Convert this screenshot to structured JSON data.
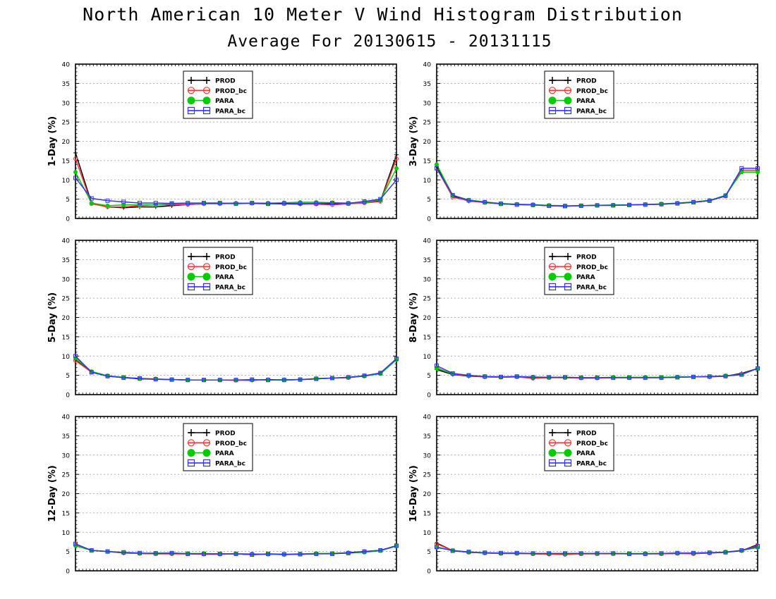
{
  "header": {
    "title": "North American 10 Meter V Wind Histogram Distribution",
    "subtitle": "Average For 20130615 - 20131115"
  },
  "legend": {
    "entries": [
      "PROD",
      "PROD_bc",
      "PARA",
      "PARA_bc"
    ]
  },
  "colors": {
    "PROD": "#000000",
    "PROD_bc": "#ff3333",
    "PARA": "#00cc00",
    "PARA_bc": "#3333ff"
  },
  "chart_data": [
    {
      "type": "line",
      "ylabel": "1-Day (%)",
      "ylim": [
        0,
        40
      ],
      "yticks": [
        "0",
        "5",
        "10",
        "15",
        "20",
        "25",
        "30",
        "35",
        "40"
      ],
      "grid": "horizontal dotted",
      "legend_position": "top-center",
      "x": [
        1,
        2,
        3,
        4,
        5,
        6,
        7,
        8,
        9,
        10,
        11,
        12,
        13,
        14,
        15,
        16,
        17,
        18,
        19,
        20,
        21
      ],
      "series": [
        {
          "name": "PROD",
          "values": [
            17.0,
            4.0,
            3.0,
            2.8,
            3.0,
            3.0,
            3.3,
            3.6,
            3.8,
            3.9,
            4.0,
            3.9,
            3.8,
            3.8,
            3.7,
            3.8,
            3.8,
            3.9,
            4.3,
            4.5,
            16.5
          ]
        },
        {
          "name": "PROD_bc",
          "values": [
            15.5,
            3.8,
            3.0,
            3.0,
            3.3,
            3.5,
            3.5,
            3.6,
            3.8,
            3.8,
            3.9,
            4.0,
            3.8,
            3.9,
            3.8,
            3.7,
            3.5,
            3.8,
            4.0,
            4.4,
            15.5
          ]
        },
        {
          "name": "PARA",
          "values": [
            12.0,
            4.0,
            3.3,
            3.5,
            3.5,
            3.5,
            3.8,
            3.8,
            4.0,
            4.0,
            3.9,
            4.0,
            4.0,
            4.1,
            4.2,
            4.2,
            4.1,
            4.0,
            4.2,
            4.8,
            13.0
          ]
        },
        {
          "name": "PARA_bc",
          "values": [
            10.5,
            5.2,
            4.6,
            4.3,
            4.0,
            4.0,
            3.9,
            4.0,
            4.0,
            4.0,
            3.8,
            4.0,
            3.8,
            3.9,
            3.9,
            3.9,
            4.0,
            3.9,
            4.4,
            5.0,
            10.0
          ]
        }
      ]
    },
    {
      "type": "line",
      "ylabel": "3-Day (%)",
      "ylim": [
        0,
        40
      ],
      "yticks": [
        "0",
        "5",
        "10",
        "15",
        "20",
        "25",
        "30",
        "35",
        "40"
      ],
      "grid": "horizontal dotted",
      "legend_position": "top-center",
      "x": [
        1,
        2,
        3,
        4,
        5,
        6,
        7,
        8,
        9,
        10,
        11,
        12,
        13,
        14,
        15,
        16,
        17,
        18,
        19,
        20,
        21
      ],
      "series": [
        {
          "name": "PROD",
          "values": [
            13.5,
            5.8,
            4.5,
            4.2,
            3.8,
            3.6,
            3.5,
            3.3,
            3.2,
            3.3,
            3.4,
            3.4,
            3.5,
            3.6,
            3.7,
            3.9,
            4.2,
            4.6,
            5.8,
            12.5,
            12.5
          ]
        },
        {
          "name": "PROD_bc",
          "values": [
            13.0,
            5.5,
            4.6,
            4.1,
            3.8,
            3.6,
            3.5,
            3.3,
            3.2,
            3.3,
            3.4,
            3.4,
            3.5,
            3.6,
            3.7,
            3.9,
            4.2,
            4.6,
            5.8,
            12.5,
            12.5
          ]
        },
        {
          "name": "PARA",
          "values": [
            14.0,
            6.0,
            4.8,
            4.3,
            3.9,
            3.7,
            3.6,
            3.4,
            3.3,
            3.3,
            3.4,
            3.5,
            3.5,
            3.6,
            3.8,
            4.0,
            4.3,
            4.7,
            6.0,
            12.0,
            12.0
          ]
        },
        {
          "name": "PARA_bc",
          "values": [
            13.0,
            6.0,
            4.7,
            4.2,
            3.8,
            3.6,
            3.5,
            3.3,
            3.2,
            3.3,
            3.4,
            3.4,
            3.5,
            3.6,
            3.7,
            3.9,
            4.2,
            4.6,
            5.9,
            13.0,
            13.0
          ]
        }
      ]
    },
    {
      "type": "line",
      "ylabel": "5-Day (%)",
      "ylim": [
        0,
        40
      ],
      "yticks": [
        "0",
        "5",
        "10",
        "15",
        "20",
        "25",
        "30",
        "35",
        "40"
      ],
      "grid": "horizontal dotted",
      "legend_position": "top-center",
      "x": [
        1,
        2,
        3,
        4,
        5,
        6,
        7,
        8,
        9,
        10,
        11,
        12,
        13,
        14,
        15,
        16,
        17,
        18,
        19,
        20,
        21
      ],
      "series": [
        {
          "name": "PROD",
          "values": [
            9.0,
            5.8,
            4.8,
            4.4,
            4.1,
            4.0,
            3.9,
            3.8,
            3.8,
            3.8,
            3.8,
            3.7,
            3.9,
            3.8,
            3.9,
            4.1,
            4.3,
            4.4,
            4.8,
            5.6,
            9.3
          ]
        },
        {
          "name": "PROD_bc",
          "values": [
            8.8,
            5.8,
            4.8,
            4.4,
            4.2,
            4.1,
            3.9,
            3.8,
            3.8,
            3.8,
            3.7,
            3.8,
            3.8,
            3.8,
            3.9,
            4.1,
            4.3,
            4.4,
            4.9,
            5.6,
            9.3
          ]
        },
        {
          "name": "PARA",
          "values": [
            9.5,
            6.0,
            4.9,
            4.5,
            4.2,
            4.0,
            3.9,
            3.8,
            3.8,
            3.8,
            3.8,
            3.8,
            3.8,
            3.9,
            3.9,
            4.2,
            4.3,
            4.5,
            4.8,
            5.4,
            9.0
          ]
        },
        {
          "name": "PARA_bc",
          "values": [
            10.0,
            5.8,
            4.8,
            4.4,
            4.2,
            4.0,
            3.9,
            3.8,
            3.8,
            3.8,
            3.8,
            3.9,
            3.8,
            3.8,
            3.9,
            4.1,
            4.3,
            4.5,
            4.9,
            5.6,
            9.3
          ]
        }
      ]
    },
    {
      "type": "line",
      "ylabel": "8-Day (%)",
      "ylim": [
        0,
        40
      ],
      "yticks": [
        "0",
        "5",
        "10",
        "15",
        "20",
        "25",
        "30",
        "35",
        "40"
      ],
      "grid": "horizontal dotted",
      "legend_position": "top-center",
      "x": [
        1,
        2,
        3,
        4,
        5,
        6,
        7,
        8,
        9,
        10,
        11,
        12,
        13,
        14,
        15,
        16,
        17,
        18,
        19,
        20,
        21
      ],
      "series": [
        {
          "name": "PROD",
          "values": [
            6.5,
            5.2,
            4.8,
            4.6,
            4.5,
            4.6,
            4.3,
            4.4,
            4.4,
            4.3,
            4.3,
            4.4,
            4.4,
            4.4,
            4.4,
            4.5,
            4.6,
            4.6,
            4.8,
            5.5,
            6.8
          ]
        },
        {
          "name": "PROD_bc",
          "values": [
            7.0,
            5.3,
            4.9,
            4.6,
            4.5,
            4.6,
            4.2,
            4.4,
            4.4,
            4.3,
            4.3,
            4.4,
            4.4,
            4.4,
            4.4,
            4.5,
            4.6,
            4.6,
            4.8,
            5.3,
            6.8
          ]
        },
        {
          "name": "PARA",
          "values": [
            6.8,
            5.4,
            5.0,
            4.7,
            4.6,
            4.7,
            4.6,
            4.5,
            4.5,
            4.4,
            4.4,
            4.5,
            4.5,
            4.5,
            4.5,
            4.6,
            4.6,
            4.7,
            4.9,
            5.2,
            6.8
          ]
        },
        {
          "name": "PARA_bc",
          "values": [
            7.5,
            5.5,
            5.0,
            4.7,
            4.6,
            4.7,
            4.5,
            4.5,
            4.5,
            4.4,
            4.4,
            4.4,
            4.4,
            4.4,
            4.4,
            4.5,
            4.6,
            4.7,
            4.8,
            5.2,
            6.8
          ]
        }
      ]
    },
    {
      "type": "line",
      "ylabel": "12-Day (%)",
      "ylim": [
        0,
        40
      ],
      "yticks": [
        "0",
        "5",
        "10",
        "15",
        "20",
        "25",
        "30",
        "35",
        "40"
      ],
      "grid": "horizontal dotted",
      "legend_position": "top-center",
      "x": [
        1,
        2,
        3,
        4,
        5,
        6,
        7,
        8,
        9,
        10,
        11,
        12,
        13,
        14,
        15,
        16,
        17,
        18,
        19,
        20,
        21
      ],
      "series": [
        {
          "name": "PROD",
          "values": [
            6.5,
            5.3,
            5.0,
            4.6,
            4.5,
            4.4,
            4.4,
            4.4,
            4.3,
            4.3,
            4.4,
            4.2,
            4.3,
            4.2,
            4.3,
            4.4,
            4.5,
            4.7,
            5.0,
            5.3,
            6.5
          ]
        },
        {
          "name": "PROD_bc",
          "values": [
            6.8,
            5.3,
            5.0,
            4.6,
            4.5,
            4.4,
            4.4,
            4.4,
            4.3,
            4.3,
            4.4,
            4.2,
            4.3,
            4.2,
            4.3,
            4.4,
            4.5,
            4.6,
            4.9,
            5.3,
            6.5
          ]
        },
        {
          "name": "PARA",
          "values": [
            6.5,
            5.3,
            5.0,
            4.7,
            4.5,
            4.6,
            4.6,
            4.5,
            4.5,
            4.4,
            4.4,
            4.4,
            4.3,
            4.3,
            4.4,
            4.5,
            4.5,
            4.6,
            4.8,
            5.2,
            6.4
          ]
        },
        {
          "name": "PARA_bc",
          "values": [
            7.0,
            5.3,
            5.0,
            4.8,
            4.6,
            4.5,
            4.6,
            4.4,
            4.4,
            4.4,
            4.4,
            4.2,
            4.4,
            4.3,
            4.3,
            4.4,
            4.4,
            4.6,
            5.0,
            5.3,
            6.5
          ]
        }
      ]
    },
    {
      "type": "line",
      "ylabel": "16-Day (%)",
      "ylim": [
        0,
        40
      ],
      "yticks": [
        "0",
        "5",
        "10",
        "15",
        "20",
        "25",
        "30",
        "35",
        "40"
      ],
      "grid": "horizontal dotted",
      "legend_position": "top-center",
      "x": [
        1,
        2,
        3,
        4,
        5,
        6,
        7,
        8,
        9,
        10,
        11,
        12,
        13,
        14,
        15,
        16,
        17,
        18,
        19,
        20,
        21
      ],
      "series": [
        {
          "name": "PROD",
          "values": [
            7.2,
            5.2,
            4.8,
            4.6,
            4.5,
            4.5,
            4.4,
            4.3,
            4.4,
            4.4,
            4.4,
            4.5,
            4.4,
            4.4,
            4.4,
            4.5,
            4.5,
            4.6,
            4.8,
            5.2,
            6.8
          ]
        },
        {
          "name": "PROD_bc",
          "values": [
            7.0,
            5.2,
            4.8,
            4.6,
            4.5,
            4.5,
            4.4,
            4.3,
            4.2,
            4.4,
            4.4,
            4.4,
            4.4,
            4.4,
            4.4,
            4.5,
            4.4,
            4.6,
            4.8,
            5.3,
            6.5
          ]
        },
        {
          "name": "PARA",
          "values": [
            6.0,
            5.3,
            4.9,
            4.6,
            4.5,
            4.5,
            4.5,
            4.5,
            4.5,
            4.5,
            4.5,
            4.5,
            4.5,
            4.5,
            4.5,
            4.6,
            4.6,
            4.7,
            4.9,
            5.3,
            6.0
          ]
        },
        {
          "name": "PARA_bc",
          "values": [
            6.2,
            5.2,
            4.9,
            4.7,
            4.6,
            4.6,
            4.5,
            4.5,
            4.5,
            4.5,
            4.5,
            4.5,
            4.4,
            4.4,
            4.5,
            4.6,
            4.6,
            4.7,
            4.8,
            5.3,
            6.3
          ]
        }
      ]
    }
  ]
}
